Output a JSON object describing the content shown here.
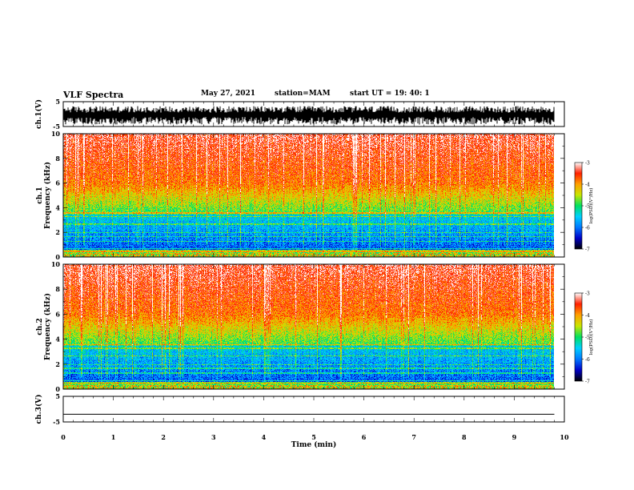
{
  "header": {
    "title": "VLF Spectra",
    "date": "May 27, 2021",
    "station": "station=MAM",
    "start": "start  UT =   19: 40: 1"
  },
  "panels": {
    "ch1_wave": {
      "ylabel": "ch.1(V)",
      "ticks": [
        "5",
        "-5"
      ]
    },
    "ch1_spec": {
      "ylabel_line1": "ch.1",
      "ylabel_line2": "Frequency (kHz)",
      "ticks": [
        "10",
        "8",
        "6",
        "4",
        "2",
        "0"
      ],
      "colorbar_ticks": [
        "-3",
        "-4",
        "-5",
        "-6",
        "-7"
      ],
      "colorbar_label": "log(PSD)(V²/Hz)"
    },
    "ch2_spec": {
      "ylabel_line1": "ch.2",
      "ylabel_line2": "Frequency (kHz)",
      "ticks": [
        "10",
        "8",
        "6",
        "4",
        "2",
        "0"
      ],
      "colorbar_ticks": [
        "-3",
        "-4",
        "-5",
        "-6",
        "-7"
      ],
      "colorbar_label": "log(PSD)(V²/Hz)"
    },
    "ch3_wave": {
      "ylabel": "ch.3(V)",
      "ticks": [
        "5",
        "-5"
      ]
    }
  },
  "x_axis": {
    "label": "Time (min)",
    "ticks": [
      "0",
      "1",
      "2",
      "3",
      "4",
      "5",
      "6",
      "7",
      "8",
      "9",
      "10"
    ]
  },
  "chart_data": [
    {
      "type": "line",
      "name": "ch.1 waveform",
      "ylabel": "ch.1(V)",
      "xlabel": "Time (min)",
      "xlim": [
        0,
        10
      ],
      "ylim": [
        -5,
        5
      ],
      "data_end_min": 9.8,
      "note_values": "dense noise between about -4 and +3 V"
    },
    {
      "type": "heatmap",
      "ylabel": "Frequency (kHz)",
      "xlabel": "Time (min)",
      "xlim": [
        0,
        10
      ],
      "ylim": [
        0,
        10
      ],
      "data_end_min": 9.8,
      "colorbar": {
        "label": "log(PSD)(V²/Hz)",
        "range": [
          -7,
          -3
        ],
        "colors": [
          "#000000",
          "#0000c8",
          "#0078ff",
          "#00d0ff",
          "#00e060",
          "#c8e600",
          "#ffa000",
          "#ff2000",
          "#ffffff"
        ]
      }
    },
    {
      "type": "heatmap",
      "ylabel": "Frequency (kHz)",
      "xlabel": "Time (min)",
      "xlim": [
        0,
        10
      ],
      "ylim": [
        0,
        10
      ],
      "data_end_min": 9.8,
      "colorbar": {
        "label": "log(PSD)(V²/Hz)",
        "range": [
          -7,
          -3
        ]
      }
    },
    {
      "type": "line",
      "name": "ch.3 waveform",
      "ylabel": "ch.3(V)",
      "xlabel": "Time (min)",
      "xlim": [
        0,
        10
      ],
      "ylim": [
        -5,
        5
      ],
      "constant_value": -2
    }
  ]
}
